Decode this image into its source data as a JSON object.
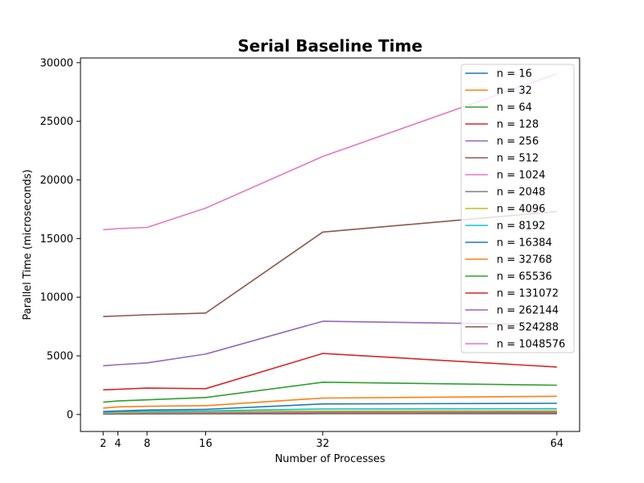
{
  "chart_data": {
    "type": "line",
    "title": "Serial Baseline Time",
    "xlabel": "Number of Processes",
    "ylabel": "Parallel Time (microseconds)",
    "x": [
      2,
      4,
      8,
      16,
      32,
      64
    ],
    "x_ticks": [
      "2",
      "4",
      "8",
      "16",
      "32",
      "64"
    ],
    "y_ticks": [
      "0",
      "5000",
      "10000",
      "15000",
      "20000",
      "25000",
      "30000"
    ],
    "xlim": [
      -1.1,
      67.1
    ],
    "ylim": [
      -1450,
      30400
    ],
    "legend_position": "top-right",
    "series": [
      {
        "name": "n = 16",
        "color": "#1f77b4",
        "values": [
          30,
          40,
          45,
          50,
          60,
          70
        ]
      },
      {
        "name": "n = 32",
        "color": "#ff7f0e",
        "values": [
          60,
          70,
          75,
          80,
          90,
          100
        ]
      },
      {
        "name": "n = 64",
        "color": "#2ca02c",
        "values": [
          70,
          80,
          90,
          100,
          110,
          120
        ]
      },
      {
        "name": "n = 128",
        "color": "#d62728",
        "values": [
          80,
          90,
          100,
          110,
          130,
          140
        ]
      },
      {
        "name": "n = 256",
        "color": "#9467bd",
        "values": [
          90,
          100,
          110,
          120,
          140,
          160
        ]
      },
      {
        "name": "n = 512",
        "color": "#8c564b",
        "values": [
          100,
          110,
          120,
          140,
          170,
          190
        ]
      },
      {
        "name": "n = 1024",
        "color": "#e377c2",
        "values": [
          110,
          120,
          140,
          160,
          200,
          220
        ]
      },
      {
        "name": "n = 2048",
        "color": "#7f7f7f",
        "values": [
          130,
          150,
          170,
          200,
          240,
          260
        ]
      },
      {
        "name": "n = 4096",
        "color": "#bcbd22",
        "values": [
          160,
          180,
          210,
          240,
          300,
          320
        ]
      },
      {
        "name": "n = 8192",
        "color": "#17becf",
        "values": [
          190,
          230,
          270,
          310,
          470,
          490
        ]
      },
      {
        "name": "n = 16384",
        "color": "#1f77b4",
        "values": [
          250,
          300,
          380,
          440,
          900,
          950
        ]
      },
      {
        "name": "n = 32768",
        "color": "#ff7f0e",
        "values": [
          550,
          650,
          700,
          750,
          1400,
          1550
        ]
      },
      {
        "name": "n = 65536",
        "color": "#2ca02c",
        "values": [
          1050,
          1150,
          1250,
          1450,
          2750,
          2500
        ]
      },
      {
        "name": "n = 131072",
        "color": "#d62728",
        "values": [
          2100,
          2150,
          2250,
          2200,
          5200,
          4050
        ]
      },
      {
        "name": "n = 262144",
        "color": "#9467bd",
        "values": [
          4150,
          4250,
          4400,
          5150,
          7950,
          7650
        ]
      },
      {
        "name": "n = 524288",
        "color": "#8c564b",
        "values": [
          8350,
          8400,
          8500,
          8650,
          15550,
          17300
        ]
      },
      {
        "name": "n = 1048576",
        "color": "#e377c2",
        "values": [
          15750,
          15850,
          15950,
          17600,
          22000,
          29050
        ]
      }
    ]
  }
}
